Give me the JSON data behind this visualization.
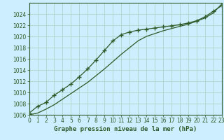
{
  "title": "Graphe pression niveau de la mer (hPa)",
  "background_color": "#cceeff",
  "grid_color": "#b0d4c8",
  "line_color": "#2d5a27",
  "xlim": [
    0,
    23
  ],
  "ylim": [
    1006,
    1026
  ],
  "xticks": [
    0,
    1,
    2,
    3,
    4,
    5,
    6,
    7,
    8,
    9,
    10,
    11,
    12,
    13,
    14,
    15,
    16,
    17,
    18,
    19,
    20,
    21,
    22,
    23
  ],
  "yticks": [
    1006,
    1008,
    1010,
    1012,
    1014,
    1016,
    1018,
    1020,
    1022,
    1024
  ],
  "series1_x": [
    0,
    1,
    2,
    3,
    4,
    5,
    6,
    7,
    8,
    9,
    10,
    11,
    12,
    13,
    14,
    15,
    16,
    17,
    18,
    19,
    20,
    21,
    22,
    23
  ],
  "series1_y": [
    1006.3,
    1007.5,
    1008.2,
    1009.5,
    1010.5,
    1011.5,
    1012.8,
    1014.2,
    1015.8,
    1017.5,
    1019.2,
    1020.3,
    1020.8,
    1021.1,
    1021.3,
    1021.5,
    1021.7,
    1021.9,
    1022.1,
    1022.4,
    1022.8,
    1023.5,
    1024.5,
    1025.5
  ],
  "series2_x": [
    0,
    1,
    2,
    3,
    4,
    5,
    6,
    7,
    8,
    9,
    10,
    11,
    12,
    13,
    14,
    15,
    16,
    17,
    18,
    19,
    20,
    21,
    22,
    23
  ],
  "series2_y": [
    1006.0,
    1006.3,
    1007.0,
    1007.8,
    1008.8,
    1009.8,
    1010.8,
    1011.8,
    1013.0,
    1014.2,
    1015.5,
    1016.8,
    1018.0,
    1019.2,
    1020.0,
    1020.5,
    1021.0,
    1021.4,
    1021.8,
    1022.2,
    1022.7,
    1023.3,
    1024.2,
    1025.8
  ],
  "tick_fontsize": 5.5,
  "title_fontsize": 6.5,
  "figsize": [
    3.2,
    2.0
  ],
  "dpi": 100
}
